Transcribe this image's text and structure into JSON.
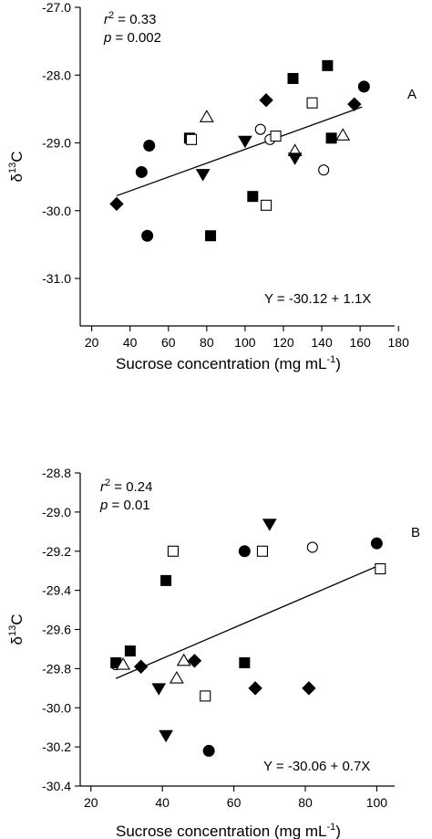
{
  "chart_data": [
    {
      "type": "scatter",
      "panel_label": "A",
      "xlabel": "Sucrose concentration (mg mL",
      "xlabel_sup": "-1",
      "xlabel_close": ")",
      "ylabel_main": "δ",
      "ylabel_sup": "13",
      "ylabel_suffix": "C",
      "xlim": [
        14,
        178
      ],
      "ylim": [
        -31.7,
        -27.0
      ],
      "xticks": [
        20,
        40,
        60,
        80,
        100,
        120,
        140,
        160,
        180
      ],
      "xtick_labels": [
        "20",
        "40",
        "60",
        "80",
        "100",
        "120",
        "140",
        "160",
        "180"
      ],
      "yticks": [
        -27.0,
        -28.0,
        -29.0,
        -30.0,
        -31.0
      ],
      "ytick_labels": [
        "-27.0",
        "-28.0",
        "-29.0",
        "-30.0",
        "-31.0"
      ],
      "stats": {
        "r2_label": "r",
        "r2_sup": "2",
        "r2_value": " = 0.33",
        "p_label": "p",
        "p_value": " = 0.002"
      },
      "equation": "Y = -30.12 + 1.1X",
      "fit": {
        "x": [
          33,
          161
        ],
        "y": [
          -29.78,
          -28.47
        ]
      },
      "series": [
        {
          "marker": "filled-circle",
          "points": [
            [
              50,
              -29.04
            ],
            [
              46,
              -29.43
            ],
            [
              49,
              -30.37
            ],
            [
              162,
              -28.17
            ]
          ]
        },
        {
          "marker": "open-circle",
          "points": [
            [
              108,
              -28.8
            ],
            [
              113,
              -28.95
            ],
            [
              141,
              -29.4
            ]
          ]
        },
        {
          "marker": "filled-square",
          "points": [
            [
              71,
              -28.93
            ],
            [
              82,
              -30.37
            ],
            [
              104,
              -29.79
            ],
            [
              125,
              -28.05
            ],
            [
              143,
              -27.86
            ],
            [
              145,
              -28.93
            ]
          ]
        },
        {
          "marker": "open-square",
          "points": [
            [
              72,
              -28.95
            ],
            [
              111,
              -29.92
            ],
            [
              116,
              -28.9
            ],
            [
              135,
              -28.41
            ]
          ]
        },
        {
          "marker": "open-triangle",
          "points": [
            [
              80,
              -28.62
            ],
            [
              126,
              -29.12
            ],
            [
              151,
              -28.89
            ]
          ]
        },
        {
          "marker": "filled-triangle",
          "points": [
            [
              78,
              -29.46
            ],
            [
              100,
              -28.97
            ],
            [
              126,
              -29.22
            ]
          ]
        },
        {
          "marker": "filled-diamond",
          "points": [
            [
              33,
              -29.9
            ],
            [
              111,
              -28.37
            ],
            [
              157,
              -28.43
            ]
          ]
        }
      ]
    },
    {
      "type": "scatter",
      "panel_label": "B",
      "xlabel": "Sucrose concentration (mg mL",
      "xlabel_sup": "-1",
      "xlabel_close": ")",
      "ylabel_main": "δ",
      "ylabel_sup": "13",
      "ylabel_suffix": "C",
      "xlim": [
        17,
        105
      ],
      "ylim": [
        -30.4,
        -28.8
      ],
      "xticks": [
        20,
        40,
        60,
        80,
        100
      ],
      "xtick_labels": [
        "20",
        "40",
        "60",
        "80",
        "100"
      ],
      "yticks": [
        -28.8,
        -29.0,
        -29.2,
        -29.4,
        -29.6,
        -29.8,
        -30.0,
        -30.2,
        -30.4
      ],
      "ytick_labels": [
        "-28.8",
        "-29.0",
        "-29.2",
        "-29.4",
        "-29.6",
        "-29.8",
        "-30.0",
        "-30.2",
        "-30.4"
      ],
      "stats": {
        "r2_label": "r",
        "r2_sup": "2",
        "r2_value": " = 0.24",
        "p_label": "p",
        "p_value": " = 0.01"
      },
      "equation": "Y = -30.06 + 0.7X",
      "fit": {
        "x": [
          27,
          101
        ],
        "y": [
          -29.85,
          -29.27
        ]
      },
      "series": [
        {
          "marker": "filled-circle",
          "points": [
            [
              63,
              -29.2
            ],
            [
              100,
              -29.16
            ],
            [
              53,
              -30.22
            ]
          ]
        },
        {
          "marker": "open-circle",
          "points": [
            [
              27,
              -29.78
            ],
            [
              82,
              -29.18
            ]
          ]
        },
        {
          "marker": "filled-square",
          "points": [
            [
              27,
              -29.77
            ],
            [
              31,
              -29.71
            ],
            [
              41,
              -29.35
            ],
            [
              63,
              -29.77
            ]
          ]
        },
        {
          "marker": "open-square",
          "points": [
            [
              43,
              -29.2
            ],
            [
              68,
              -29.2
            ],
            [
              52,
              -29.94
            ],
            [
              101,
              -29.29
            ]
          ]
        },
        {
          "marker": "open-triangle",
          "points": [
            [
              29,
              -29.78
            ],
            [
              44,
              -29.85
            ],
            [
              46,
              -29.76
            ]
          ]
        },
        {
          "marker": "filled-triangle",
          "points": [
            [
              70,
              -29.06
            ],
            [
              39,
              -29.9
            ],
            [
              41,
              -30.14
            ]
          ]
        },
        {
          "marker": "filled-diamond",
          "points": [
            [
              34,
              -29.79
            ],
            [
              49,
              -29.76
            ],
            [
              66,
              -29.9
            ],
            [
              81,
              -29.9
            ]
          ]
        }
      ]
    }
  ]
}
